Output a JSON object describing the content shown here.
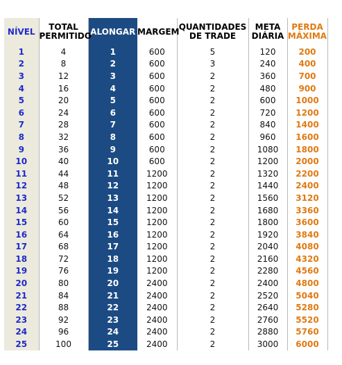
{
  "headers": {
    "nivel": "NÍVEL",
    "total_line1": "TOTAL",
    "total_line2": "PERMITIDO",
    "alongar": "ALONGAR",
    "margem": "MARGEM",
    "qtd_line1": "QUANTIDADES",
    "qtd_line2": "DE TRADE",
    "meta_line1": "META",
    "meta_line2": "DIÁRIA",
    "perda_line1": "PERDA",
    "perda_line2": "MÁXIMA"
  },
  "colors": {
    "nivel_text": "#1f2bc8",
    "nivel_bg": "#eceadd",
    "alongar_bg": "#1c4b84",
    "perda_text": "#e07a12"
  },
  "rows": [
    {
      "nivel": "1",
      "total": "4",
      "alongar": "1",
      "margem": "600",
      "qtd": "5",
      "meta": "120",
      "perda": "200"
    },
    {
      "nivel": "2",
      "total": "8",
      "alongar": "2",
      "margem": "600",
      "qtd": "3",
      "meta": "240",
      "perda": "400"
    },
    {
      "nivel": "3",
      "total": "12",
      "alongar": "3",
      "margem": "600",
      "qtd": "2",
      "meta": "360",
      "perda": "700"
    },
    {
      "nivel": "4",
      "total": "16",
      "alongar": "4",
      "margem": "600",
      "qtd": "2",
      "meta": "480",
      "perda": "900"
    },
    {
      "nivel": "5",
      "total": "20",
      "alongar": "5",
      "margem": "600",
      "qtd": "2",
      "meta": "600",
      "perda": "1000"
    },
    {
      "nivel": "6",
      "total": "24",
      "alongar": "6",
      "margem": "600",
      "qtd": "2",
      "meta": "720",
      "perda": "1200"
    },
    {
      "nivel": "7",
      "total": "28",
      "alongar": "7",
      "margem": "600",
      "qtd": "2",
      "meta": "840",
      "perda": "1400"
    },
    {
      "nivel": "8",
      "total": "32",
      "alongar": "8",
      "margem": "600",
      "qtd": "2",
      "meta": "960",
      "perda": "1600"
    },
    {
      "nivel": "9",
      "total": "36",
      "alongar": "9",
      "margem": "600",
      "qtd": "2",
      "meta": "1080",
      "perda": "1800"
    },
    {
      "nivel": "10",
      "total": "40",
      "alongar": "10",
      "margem": "600",
      "qtd": "2",
      "meta": "1200",
      "perda": "2000"
    },
    {
      "nivel": "11",
      "total": "44",
      "alongar": "11",
      "margem": "1200",
      "qtd": "2",
      "meta": "1320",
      "perda": "2200"
    },
    {
      "nivel": "12",
      "total": "48",
      "alongar": "12",
      "margem": "1200",
      "qtd": "2",
      "meta": "1440",
      "perda": "2400"
    },
    {
      "nivel": "13",
      "total": "52",
      "alongar": "13",
      "margem": "1200",
      "qtd": "2",
      "meta": "1560",
      "perda": "3120"
    },
    {
      "nivel": "14",
      "total": "56",
      "alongar": "14",
      "margem": "1200",
      "qtd": "2",
      "meta": "1680",
      "perda": "3360"
    },
    {
      "nivel": "15",
      "total": "60",
      "alongar": "15",
      "margem": "1200",
      "qtd": "2",
      "meta": "1800",
      "perda": "3600"
    },
    {
      "nivel": "16",
      "total": "64",
      "alongar": "16",
      "margem": "1200",
      "qtd": "2",
      "meta": "1920",
      "perda": "3840"
    },
    {
      "nivel": "17",
      "total": "68",
      "alongar": "17",
      "margem": "1200",
      "qtd": "2",
      "meta": "2040",
      "perda": "4080"
    },
    {
      "nivel": "18",
      "total": "72",
      "alongar": "18",
      "margem": "1200",
      "qtd": "2",
      "meta": "2160",
      "perda": "4320"
    },
    {
      "nivel": "19",
      "total": "76",
      "alongar": "19",
      "margem": "1200",
      "qtd": "2",
      "meta": "2280",
      "perda": "4560"
    },
    {
      "nivel": "20",
      "total": "80",
      "alongar": "20",
      "margem": "2400",
      "qtd": "2",
      "meta": "2400",
      "perda": "4800"
    },
    {
      "nivel": "21",
      "total": "84",
      "alongar": "21",
      "margem": "2400",
      "qtd": "2",
      "meta": "2520",
      "perda": "5040"
    },
    {
      "nivel": "22",
      "total": "88",
      "alongar": "22",
      "margem": "2400",
      "qtd": "2",
      "meta": "2640",
      "perda": "5280"
    },
    {
      "nivel": "23",
      "total": "92",
      "alongar": "23",
      "margem": "2400",
      "qtd": "2",
      "meta": "2760",
      "perda": "5520"
    },
    {
      "nivel": "24",
      "total": "96",
      "alongar": "24",
      "margem": "2400",
      "qtd": "2",
      "meta": "2880",
      "perda": "5760"
    },
    {
      "nivel": "25",
      "total": "100",
      "alongar": "25",
      "margem": "2400",
      "qtd": "2",
      "meta": "3000",
      "perda": "6000"
    }
  ]
}
